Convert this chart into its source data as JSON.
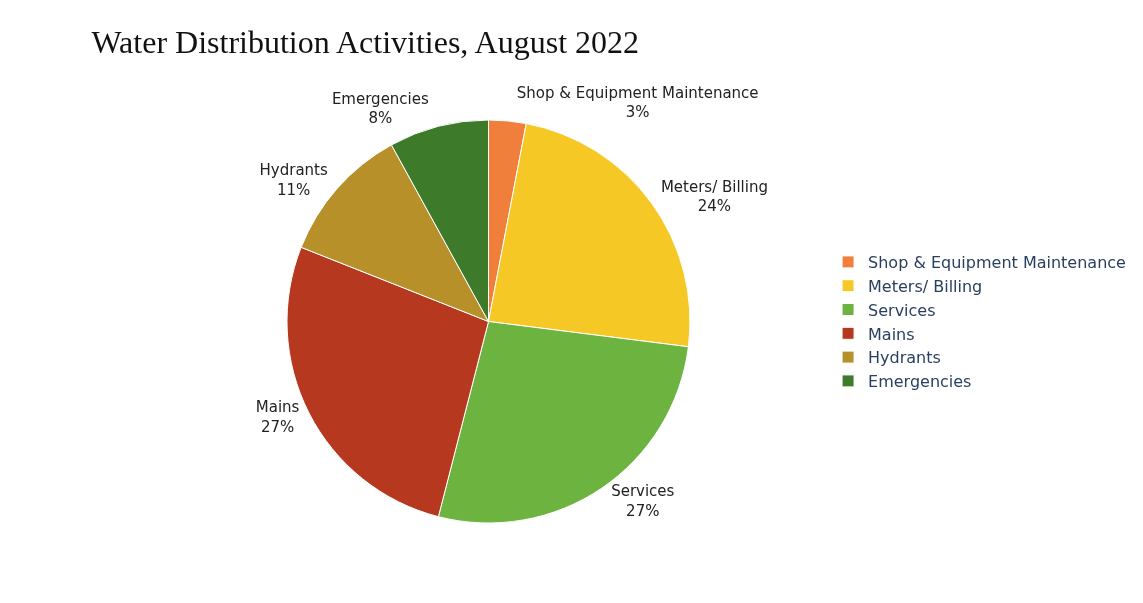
{
  "chart_data": {
    "type": "pie",
    "title": "Water Distribution Activities, August 2022",
    "categories": [
      "Shop & Equipment Maintenance",
      "Meters/ Billing",
      "Services",
      "Mains",
      "Hydrants",
      "Emergencies"
    ],
    "values": [
      3,
      24,
      27,
      27,
      11,
      8
    ],
    "value_labels": [
      "3%",
      "24%",
      "27%",
      "27%",
      "11%",
      "8%"
    ],
    "colors": [
      "#f07f3c",
      "#f5c825",
      "#6db33f",
      "#b5381f",
      "#b8902a",
      "#3d7a2a"
    ],
    "legend": "right"
  }
}
